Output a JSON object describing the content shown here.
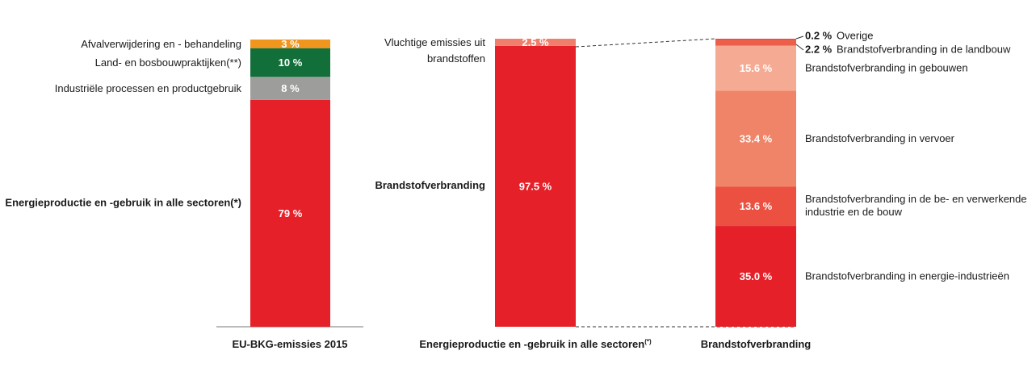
{
  "chart_data": [
    {
      "type": "bar",
      "stacked": true,
      "category": "EU-BKG-emissies 2015",
      "segments": [
        {
          "name": "Energieproductie en -gebruik in alle sectoren(*)",
          "value": 79,
          "label": "79 %",
          "color": "#e52028"
        },
        {
          "name": "Industriële processen en productgebruik",
          "value": 8,
          "label": "8 %",
          "color": "#9d9d9c"
        },
        {
          "name": "Land- en bosbouwpraktijken(**)",
          "value": 10,
          "label": "10 %",
          "color": "#136f3a"
        },
        {
          "name": "Afvalverwijdering en - behandeling",
          "value": 3,
          "label": "3 %",
          "color": "#f0961e"
        }
      ]
    },
    {
      "type": "bar",
      "stacked": true,
      "category": "Energieproductie en -gebruik in alle sectoren",
      "category_suffix": "(*)",
      "segments": [
        {
          "name": "Brandstofverbranding",
          "value": 97.5,
          "label": "97.5 %",
          "color": "#e52028"
        },
        {
          "name": "Vluchtige emissies uit brandstoffen",
          "name_lines": [
            "Vluchtige emissies uit",
            "brandstoffen"
          ],
          "value": 2.5,
          "label": "2.5 %",
          "color": "#ef7f6c"
        }
      ]
    },
    {
      "type": "bar",
      "stacked": true,
      "category": "Brandstofverbranding",
      "segments": [
        {
          "name": "Brandstofverbranding in energie-industrieën",
          "value": 35.0,
          "label": "35.0 %",
          "color": "#e52028"
        },
        {
          "name": "Brandstofverbranding in de be- en verwerkende industrie en de bouw",
          "name_lines": [
            "Brandstofverbranding in de be- en verwerkende",
            "industrie en de bouw"
          ],
          "value": 13.6,
          "label": "13.6 %",
          "color": "#eb5040"
        },
        {
          "name": "Brandstofverbranding in vervoer",
          "value": 33.4,
          "label": "33.4 %",
          "color": "#f08468"
        },
        {
          "name": "Brandstofverbranding in gebouwen",
          "value": 15.6,
          "label": "15.6 %",
          "color": "#f5ab93"
        },
        {
          "name": "Brandstofverbranding in de landbouw",
          "value": 2.2,
          "label": "2.2 %",
          "color": "#eb5f4b"
        },
        {
          "name": "Overige",
          "value": 0.2,
          "label": "0.2 %",
          "color": "#e52028"
        }
      ]
    }
  ]
}
